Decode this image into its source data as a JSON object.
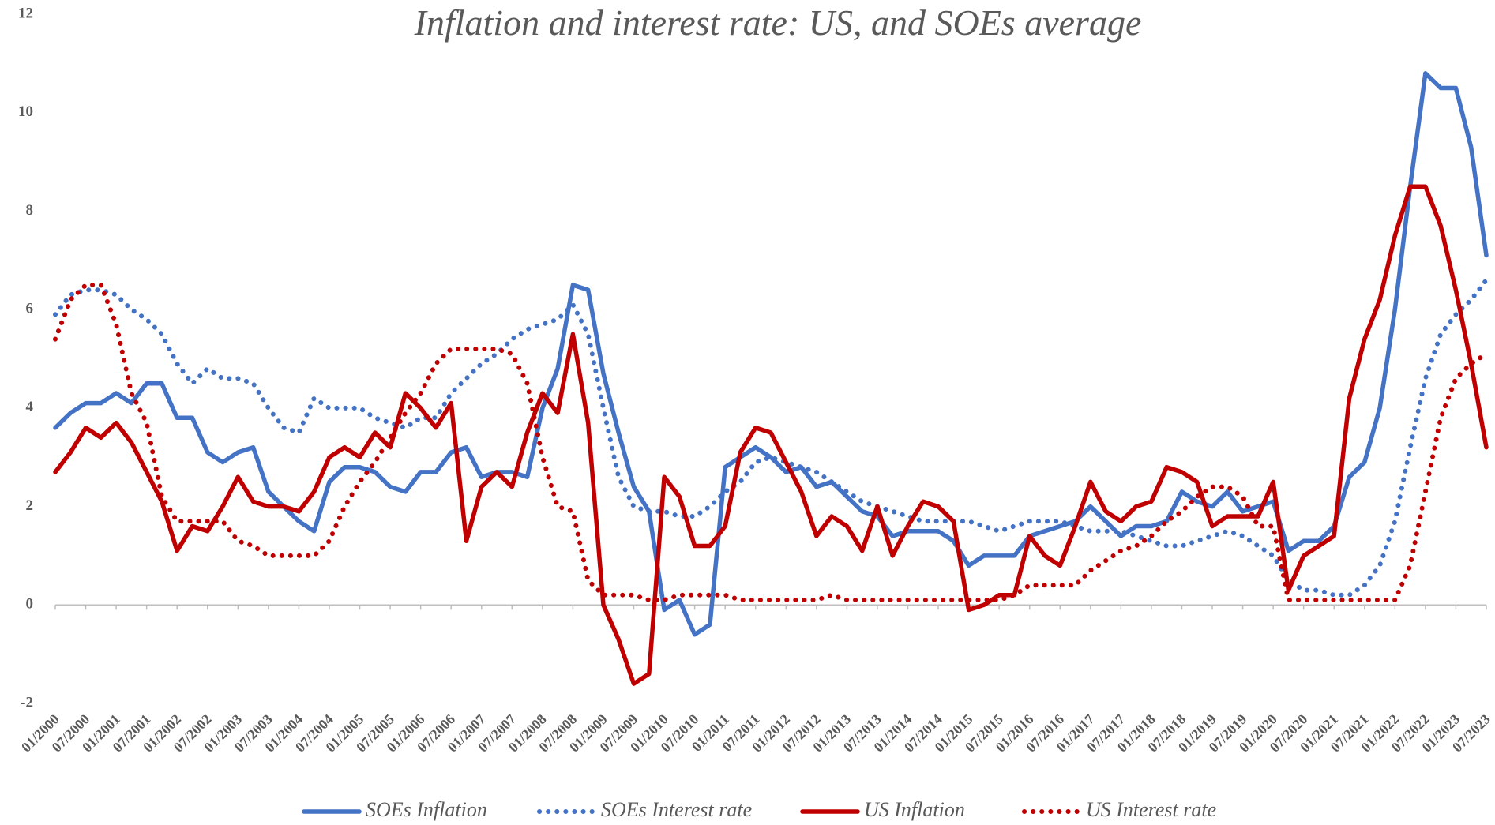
{
  "chart_data": {
    "type": "line",
    "title": "Inflation and interest rate: US, and SOEs average",
    "categories": [
      "01/2000",
      null,
      "07/2000",
      null,
      "01/2001",
      null,
      "07/2001",
      null,
      "01/2002",
      null,
      "07/2002",
      null,
      "01/2003",
      null,
      "07/2003",
      null,
      "01/2004",
      null,
      "07/2004",
      null,
      "01/2005",
      null,
      "07/2005",
      null,
      "01/2006",
      null,
      "07/2006",
      null,
      "01/2007",
      null,
      "07/2007",
      null,
      "01/2008",
      null,
      "07/2008",
      null,
      "01/2009",
      null,
      "07/2009",
      null,
      "01/2010",
      null,
      "07/2010",
      null,
      "01/2011",
      null,
      "07/2011",
      null,
      "01/2012",
      null,
      "07/2012",
      null,
      "01/2013",
      null,
      "07/2013",
      null,
      "01/2014",
      null,
      "07/2014",
      null,
      "01/2015",
      null,
      "07/2015",
      null,
      "01/2016",
      null,
      "07/2016",
      null,
      "01/2017",
      null,
      "07/2017",
      null,
      "01/2018",
      null,
      "07/2018",
      null,
      "01/2019",
      null,
      "07/2019",
      null,
      "01/2020",
      null,
      "07/2020",
      null,
      "01/2021",
      null,
      "07/2021",
      null,
      "01/2022",
      null,
      "07/2022",
      null,
      "01/2023",
      null,
      "07/2023"
    ],
    "series": [
      {
        "name": "SOEs Inflation",
        "color": "#4472c4",
        "style": "solid",
        "values": [
          3.6,
          3.9,
          4.1,
          4.1,
          4.3,
          4.1,
          4.5,
          4.5,
          3.8,
          3.8,
          3.1,
          2.9,
          3.1,
          3.2,
          2.3,
          2.0,
          1.7,
          1.5,
          2.5,
          2.8,
          2.8,
          2.7,
          2.4,
          2.3,
          2.7,
          2.7,
          3.1,
          3.2,
          2.6,
          2.7,
          2.7,
          2.6,
          4.0,
          4.8,
          6.5,
          6.4,
          4.7,
          3.5,
          2.4,
          1.9,
          -0.1,
          0.1,
          -0.6,
          -0.4,
          2.8,
          3.0,
          3.2,
          3.0,
          2.7,
          2.8,
          2.4,
          2.5,
          2.2,
          1.9,
          1.8,
          1.4,
          1.5,
          1.5,
          1.5,
          1.3,
          0.8,
          1.0,
          1.0,
          1.0,
          1.4,
          1.5,
          1.6,
          1.7,
          2.0,
          1.7,
          1.4,
          1.6,
          1.6,
          1.7,
          2.3,
          2.1,
          2.0,
          2.3,
          1.9,
          2.0,
          2.1,
          1.1,
          1.3,
          1.3,
          1.6,
          2.6,
          2.9,
          4.0,
          6.0,
          8.5,
          10.8,
          10.5,
          10.5,
          9.3,
          7.1
        ]
      },
      {
        "name": "SOEs Interest rate",
        "color": "#4472c4",
        "style": "dotted",
        "values": [
          5.9,
          6.3,
          6.4,
          6.4,
          6.3,
          6.0,
          5.8,
          5.5,
          4.9,
          4.5,
          4.8,
          4.6,
          4.6,
          4.5,
          4.0,
          3.6,
          3.5,
          4.2,
          4.0,
          4.0,
          4.0,
          3.8,
          3.7,
          3.6,
          3.8,
          3.8,
          4.3,
          4.6,
          4.9,
          5.1,
          5.4,
          5.6,
          5.7,
          5.8,
          6.1,
          5.5,
          4.0,
          2.6,
          2.0,
          1.9,
          1.9,
          1.8,
          1.8,
          2.0,
          2.3,
          2.5,
          2.9,
          3.0,
          2.9,
          2.8,
          2.7,
          2.5,
          2.3,
          2.1,
          2.0,
          1.9,
          1.8,
          1.7,
          1.7,
          1.7,
          1.7,
          1.6,
          1.5,
          1.6,
          1.7,
          1.7,
          1.7,
          1.6,
          1.5,
          1.5,
          1.5,
          1.4,
          1.3,
          1.2,
          1.2,
          1.3,
          1.4,
          1.5,
          1.4,
          1.2,
          1.0,
          0.5,
          0.3,
          0.3,
          0.2,
          0.2,
          0.4,
          0.8,
          1.7,
          3.2,
          4.6,
          5.5,
          5.9,
          6.2,
          6.6
        ]
      },
      {
        "name": "US Inflation",
        "color": "#c00000",
        "style": "solid",
        "values": [
          2.7,
          3.1,
          3.6,
          3.4,
          3.7,
          3.3,
          2.7,
          2.1,
          1.1,
          1.6,
          1.5,
          2.0,
          2.6,
          2.1,
          2.0,
          2.0,
          1.9,
          2.3,
          3.0,
          3.2,
          3.0,
          3.5,
          3.2,
          4.3,
          4.0,
          3.6,
          4.1,
          1.3,
          2.4,
          2.7,
          2.4,
          3.5,
          4.3,
          3.9,
          5.5,
          3.7,
          0.0,
          -0.7,
          -1.6,
          -1.4,
          2.6,
          2.2,
          1.2,
          1.2,
          1.6,
          3.1,
          3.6,
          3.5,
          2.9,
          2.3,
          1.4,
          1.8,
          1.6,
          1.1,
          2.0,
          1.0,
          1.6,
          2.1,
          2.0,
          1.7,
          -0.1,
          0.0,
          0.2,
          0.2,
          1.4,
          1.0,
          0.8,
          1.6,
          2.5,
          1.9,
          1.7,
          2.0,
          2.1,
          2.8,
          2.7,
          2.5,
          1.6,
          1.8,
          1.8,
          1.8,
          2.5,
          0.3,
          1.0,
          1.2,
          1.4,
          4.2,
          5.4,
          6.2,
          7.5,
          8.5,
          8.5,
          7.7,
          6.4,
          4.9,
          3.2
        ]
      },
      {
        "name": "US Interest rate",
        "color": "#c00000",
        "style": "dotted",
        "values": [
          5.4,
          6.2,
          6.5,
          6.5,
          5.7,
          4.3,
          3.7,
          2.2,
          1.7,
          1.7,
          1.7,
          1.7,
          1.3,
          1.2,
          1.0,
          1.0,
          1.0,
          1.0,
          1.3,
          2.0,
          2.5,
          2.9,
          3.4,
          3.9,
          4.3,
          4.9,
          5.2,
          5.2,
          5.2,
          5.2,
          5.1,
          4.5,
          3.0,
          2.0,
          1.9,
          0.5,
          0.2,
          0.2,
          0.2,
          0.1,
          0.1,
          0.2,
          0.2,
          0.2,
          0.2,
          0.1,
          0.1,
          0.1,
          0.1,
          0.1,
          0.1,
          0.2,
          0.1,
          0.1,
          0.1,
          0.1,
          0.1,
          0.1,
          0.1,
          0.1,
          0.1,
          0.1,
          0.1,
          0.2,
          0.4,
          0.4,
          0.4,
          0.4,
          0.7,
          0.9,
          1.1,
          1.2,
          1.4,
          1.7,
          1.9,
          2.2,
          2.4,
          2.4,
          2.2,
          1.6,
          1.6,
          0.1,
          0.1,
          0.1,
          0.1,
          0.1,
          0.1,
          0.1,
          0.1,
          0.8,
          2.3,
          3.8,
          4.6,
          4.9,
          5.1
        ]
      }
    ],
    "ylim": [
      -2,
      12
    ],
    "yticks": [
      -2,
      0,
      2,
      4,
      6,
      8,
      10,
      12
    ],
    "grid": false,
    "legend": "bottom"
  }
}
